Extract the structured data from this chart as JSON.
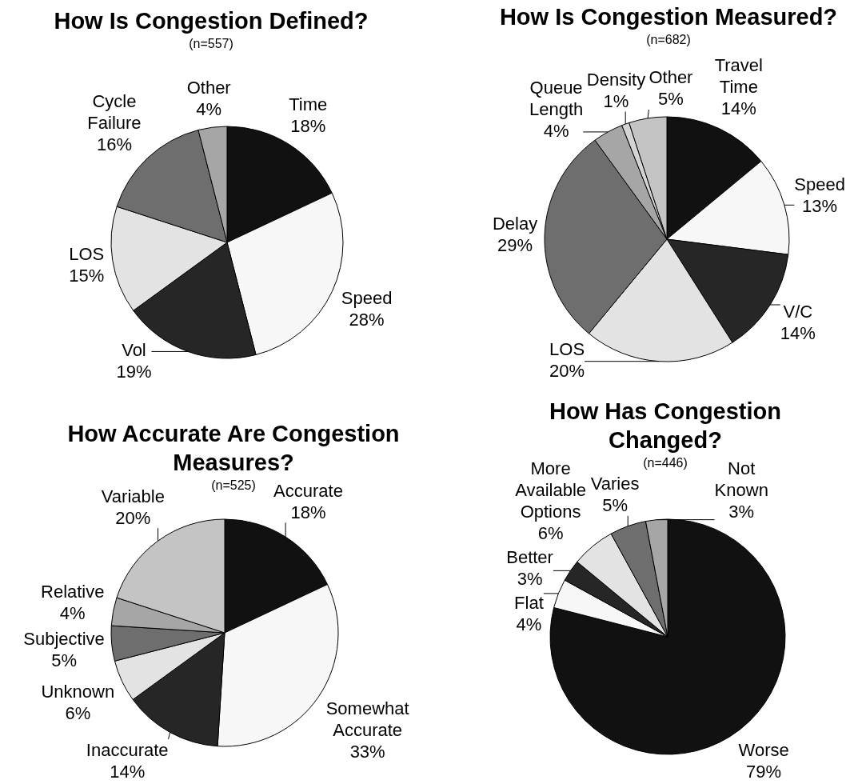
{
  "chart_data": [
    {
      "type": "pie",
      "title": "How Is Congestion Defined?",
      "subtitle": "(n=557)",
      "categories": [
        "Time",
        "Speed",
        "Vol",
        "LOS",
        "Cycle Failure",
        "Other"
      ],
      "values": [
        18,
        28,
        19,
        15,
        16,
        4
      ],
      "value_labels": [
        "18%",
        "28%",
        "19%",
        "15%",
        "16%",
        "4%"
      ],
      "colors": [
        "#111111",
        "#f7f7f7",
        "#262626",
        "#e3e3e3",
        "#6e6e6e",
        "#a6a6a6"
      ]
    },
    {
      "type": "pie",
      "title": "How Is Congestion Measured?",
      "subtitle": "(n=682)",
      "categories": [
        "Travel Time",
        "Speed",
        "V/C",
        "LOS",
        "Delay",
        "Queue Length",
        "Density",
        "Other"
      ],
      "values": [
        14,
        13,
        14,
        20,
        29,
        4,
        1,
        5
      ],
      "value_labels": [
        "14%",
        "13%",
        "14%",
        "20%",
        "29%",
        "4%",
        "1%",
        "5%"
      ],
      "colors": [
        "#111111",
        "#f7f7f7",
        "#262626",
        "#e3e3e3",
        "#6e6e6e",
        "#a6a6a6",
        "#d4d4d4",
        "#c4c4c4"
      ]
    },
    {
      "type": "pie",
      "title": "How Accurate Are Congestion Measures?",
      "subtitle": "(n=525)",
      "categories": [
        "Accurate",
        "Somewhat Accurate",
        "Inaccurate",
        "Unknown",
        "Subjective",
        "Relative",
        "Variable"
      ],
      "values": [
        18,
        33,
        14,
        6,
        5,
        4,
        20
      ],
      "value_labels": [
        "18%",
        "33%",
        "14%",
        "6%",
        "5%",
        "4%",
        "20%"
      ],
      "colors": [
        "#111111",
        "#f7f7f7",
        "#262626",
        "#e3e3e3",
        "#6e6e6e",
        "#a6a6a6",
        "#c4c4c4"
      ]
    },
    {
      "type": "pie",
      "title": "How Has Congestion Changed?",
      "subtitle": "(n=446)",
      "categories": [
        "Worse",
        "Flat",
        "Better",
        "More Available Options",
        "Varies",
        "Not Known"
      ],
      "values": [
        79,
        4,
        3,
        6,
        5,
        3
      ],
      "value_labels": [
        "79%",
        "4%",
        "3%",
        "6%",
        "5%",
        "3%"
      ],
      "colors": [
        "#111111",
        "#f7f7f7",
        "#262626",
        "#e3e3e3",
        "#6e6e6e",
        "#a6a6a6"
      ]
    }
  ]
}
